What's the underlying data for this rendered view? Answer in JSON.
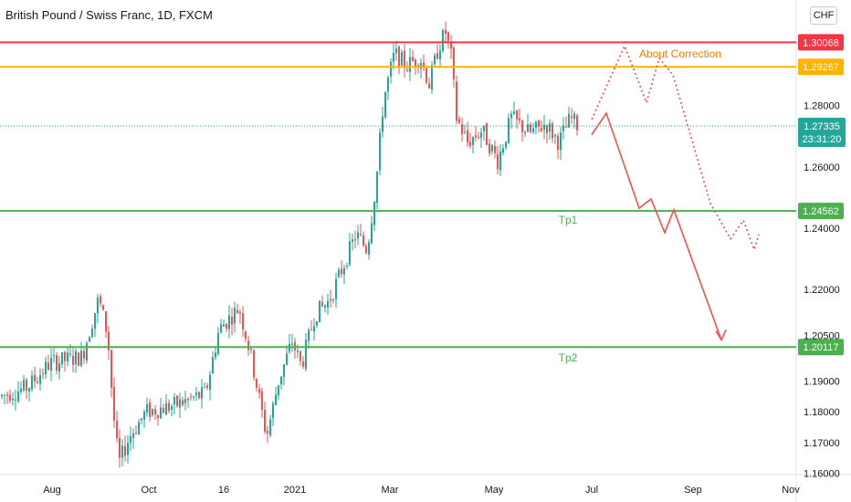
{
  "header": {
    "title": "British Pound / Swiss Franc, 1D, FXCM",
    "currency_button": "CHF"
  },
  "chart_data": {
    "type": "candlestick",
    "symbol": "British Pound / Swiss Franc",
    "interval": "1D",
    "source": "FXCM",
    "ylim": [
      1.1595,
      1.3145
    ],
    "x_ticks": [
      "Aug",
      "Oct",
      "16",
      "2021",
      "Mar",
      "May",
      "Jul",
      "Sep",
      "Nov"
    ],
    "y_ticks": [
      "1.28000",
      "1.26000",
      "1.24000",
      "1.22000",
      "1.20500",
      "1.19000",
      "1.18000",
      "1.17000",
      "1.16000"
    ],
    "y_tick_values": [
      1.28,
      1.26,
      1.24,
      1.22,
      1.205,
      1.19,
      1.18,
      1.17,
      1.16
    ],
    "levels": [
      {
        "label": "1.30068",
        "value": 1.30068,
        "color": "#f23645"
      },
      {
        "label": "1.29267",
        "value": 1.29267,
        "color": "#ffb300"
      },
      {
        "label": "1.24562",
        "value": 1.24562,
        "color": "#4caf50"
      },
      {
        "label": "1.20117",
        "value": 1.20117,
        "color": "#4caf50"
      }
    ],
    "current_price": {
      "label": "1.27335",
      "value": 1.27335,
      "countdown": "23:31:20",
      "color": "#26a69a"
    },
    "annotations": [
      {
        "text": "About Correction",
        "color": "#f57c00"
      },
      {
        "text": "Tp1",
        "color": "#4caf50"
      },
      {
        "text": "Tp2",
        "color": "#4caf50"
      }
    ],
    "projections": [
      {
        "style": "solid",
        "color": "#ef5350",
        "points": [
          [
            "Jun 29",
            1.2705
          ],
          [
            "Jul 14",
            1.2775
          ],
          [
            "Aug 6",
            1.2465
          ],
          [
            "Aug 13",
            1.2495
          ],
          [
            "Aug 20",
            1.2385
          ],
          [
            "Aug 27",
            1.246
          ],
          [
            "Sep 20",
            1.2035
          ]
        ]
      },
      {
        "style": "dotted",
        "color": "#ef5350",
        "points": [
          [
            "Jun 29",
            1.2755
          ],
          [
            "Jul 20",
            1.2995
          ],
          [
            "Aug 14",
            1.281
          ],
          [
            "Aug 26",
            1.2955
          ],
          [
            "Aug 31",
            1.29
          ],
          [
            "Sep 23",
            1.248
          ],
          [
            "Oct 4",
            1.2365
          ],
          [
            "Oct 10",
            1.2425
          ],
          [
            "Oct 21",
            1.233
          ],
          [
            "Oct 25",
            1.238
          ]
        ]
      }
    ],
    "series_approx": [
      {
        "date": "Jul 2020",
        "price": 1.185
      },
      {
        "date": "Aug 2020",
        "price": 1.195
      },
      {
        "date": "early Sep 2020",
        "price": 1.218
      },
      {
        "date": "late Sep 2020",
        "price": 1.163
      },
      {
        "date": "Oct 2020",
        "price": 1.18
      },
      {
        "date": "mid Nov 2020",
        "price": 1.218
      },
      {
        "date": "Dec 2020",
        "price": 1.172
      },
      {
        "date": "Jan 2021",
        "price": 1.21
      },
      {
        "date": "mid Feb 2021",
        "price": 1.232
      },
      {
        "date": "late Feb 2021",
        "price": 1.285
      },
      {
        "date": "Mar 2021",
        "price": 1.295
      },
      {
        "date": "mid Apr 2021",
        "price": 1.304
      },
      {
        "date": "May 2021",
        "price": 1.266
      },
      {
        "date": "Jun 2021",
        "price": 1.273
      },
      {
        "date": "late Jun 2021",
        "price": 1.2734
      }
    ]
  }
}
